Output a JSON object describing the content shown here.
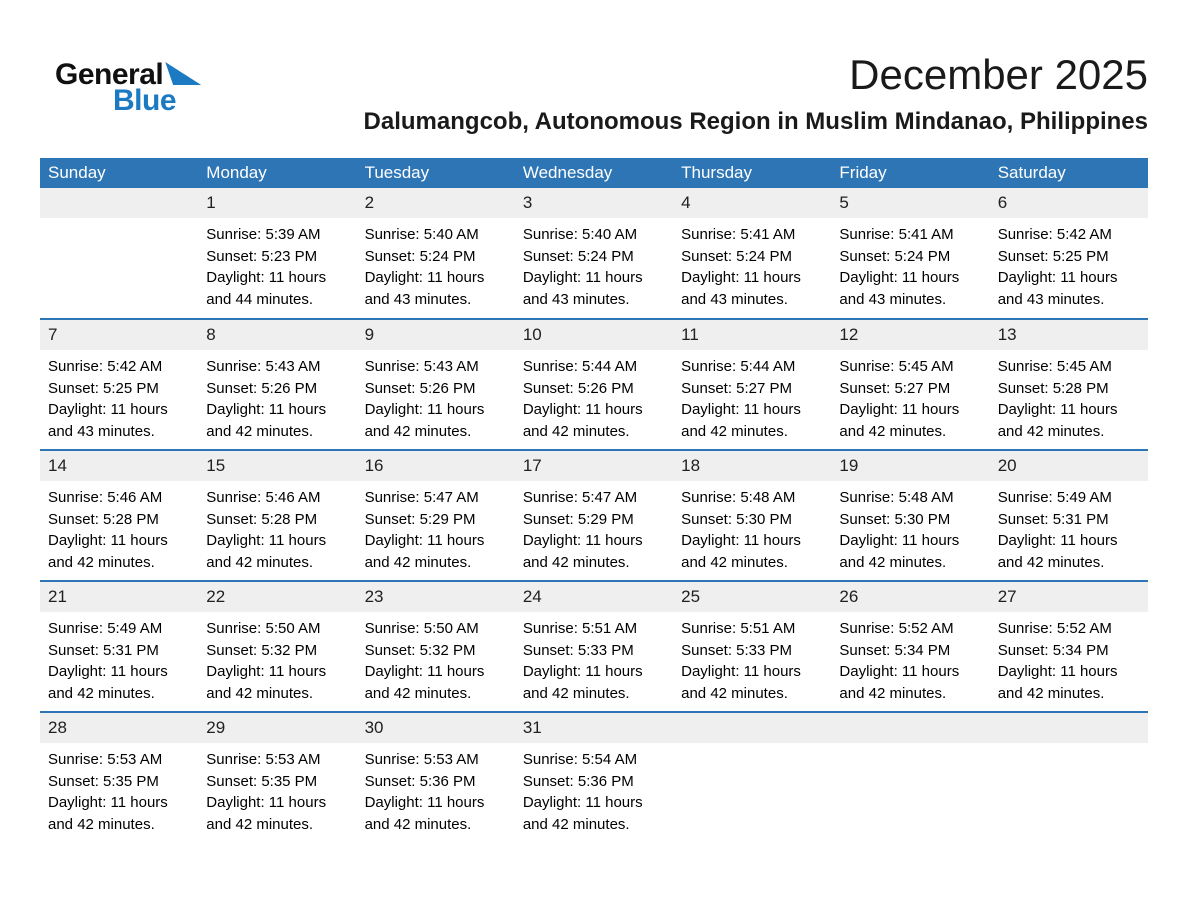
{
  "logo": {
    "part1": "General",
    "part2": "Blue"
  },
  "header": {
    "title": "December 2025",
    "subtitle": "Dalumangcob, Autonomous Region in Muslim Mindanao, Philippines"
  },
  "colors": {
    "header_bg": "#2e75b6",
    "week_border": "#2e75b6",
    "day_strip_bg": "#efefef",
    "logo_blue": "#1b7ac2"
  },
  "calendar": {
    "weekdays": [
      "Sunday",
      "Monday",
      "Tuesday",
      "Wednesday",
      "Thursday",
      "Friday",
      "Saturday"
    ],
    "weeks": [
      [
        null,
        {
          "day": "1",
          "sunrise": "Sunrise: 5:39 AM",
          "sunset": "Sunset: 5:23 PM",
          "daylight": [
            "Daylight: 11 hours",
            "and 44 minutes."
          ]
        },
        {
          "day": "2",
          "sunrise": "Sunrise: 5:40 AM",
          "sunset": "Sunset: 5:24 PM",
          "daylight": [
            "Daylight: 11 hours",
            "and 43 minutes."
          ]
        },
        {
          "day": "3",
          "sunrise": "Sunrise: 5:40 AM",
          "sunset": "Sunset: 5:24 PM",
          "daylight": [
            "Daylight: 11 hours",
            "and 43 minutes."
          ]
        },
        {
          "day": "4",
          "sunrise": "Sunrise: 5:41 AM",
          "sunset": "Sunset: 5:24 PM",
          "daylight": [
            "Daylight: 11 hours",
            "and 43 minutes."
          ]
        },
        {
          "day": "5",
          "sunrise": "Sunrise: 5:41 AM",
          "sunset": "Sunset: 5:24 PM",
          "daylight": [
            "Daylight: 11 hours",
            "and 43 minutes."
          ]
        },
        {
          "day": "6",
          "sunrise": "Sunrise: 5:42 AM",
          "sunset": "Sunset: 5:25 PM",
          "daylight": [
            "Daylight: 11 hours",
            "and 43 minutes."
          ]
        }
      ],
      [
        {
          "day": "7",
          "sunrise": "Sunrise: 5:42 AM",
          "sunset": "Sunset: 5:25 PM",
          "daylight": [
            "Daylight: 11 hours",
            "and 43 minutes."
          ]
        },
        {
          "day": "8",
          "sunrise": "Sunrise: 5:43 AM",
          "sunset": "Sunset: 5:26 PM",
          "daylight": [
            "Daylight: 11 hours",
            "and 42 minutes."
          ]
        },
        {
          "day": "9",
          "sunrise": "Sunrise: 5:43 AM",
          "sunset": "Sunset: 5:26 PM",
          "daylight": [
            "Daylight: 11 hours",
            "and 42 minutes."
          ]
        },
        {
          "day": "10",
          "sunrise": "Sunrise: 5:44 AM",
          "sunset": "Sunset: 5:26 PM",
          "daylight": [
            "Daylight: 11 hours",
            "and 42 minutes."
          ]
        },
        {
          "day": "11",
          "sunrise": "Sunrise: 5:44 AM",
          "sunset": "Sunset: 5:27 PM",
          "daylight": [
            "Daylight: 11 hours",
            "and 42 minutes."
          ]
        },
        {
          "day": "12",
          "sunrise": "Sunrise: 5:45 AM",
          "sunset": "Sunset: 5:27 PM",
          "daylight": [
            "Daylight: 11 hours",
            "and 42 minutes."
          ]
        },
        {
          "day": "13",
          "sunrise": "Sunrise: 5:45 AM",
          "sunset": "Sunset: 5:28 PM",
          "daylight": [
            "Daylight: 11 hours",
            "and 42 minutes."
          ]
        }
      ],
      [
        {
          "day": "14",
          "sunrise": "Sunrise: 5:46 AM",
          "sunset": "Sunset: 5:28 PM",
          "daylight": [
            "Daylight: 11 hours",
            "and 42 minutes."
          ]
        },
        {
          "day": "15",
          "sunrise": "Sunrise: 5:46 AM",
          "sunset": "Sunset: 5:28 PM",
          "daylight": [
            "Daylight: 11 hours",
            "and 42 minutes."
          ]
        },
        {
          "day": "16",
          "sunrise": "Sunrise: 5:47 AM",
          "sunset": "Sunset: 5:29 PM",
          "daylight": [
            "Daylight: 11 hours",
            "and 42 minutes."
          ]
        },
        {
          "day": "17",
          "sunrise": "Sunrise: 5:47 AM",
          "sunset": "Sunset: 5:29 PM",
          "daylight": [
            "Daylight: 11 hours",
            "and 42 minutes."
          ]
        },
        {
          "day": "18",
          "sunrise": "Sunrise: 5:48 AM",
          "sunset": "Sunset: 5:30 PM",
          "daylight": [
            "Daylight: 11 hours",
            "and 42 minutes."
          ]
        },
        {
          "day": "19",
          "sunrise": "Sunrise: 5:48 AM",
          "sunset": "Sunset: 5:30 PM",
          "daylight": [
            "Daylight: 11 hours",
            "and 42 minutes."
          ]
        },
        {
          "day": "20",
          "sunrise": "Sunrise: 5:49 AM",
          "sunset": "Sunset: 5:31 PM",
          "daylight": [
            "Daylight: 11 hours",
            "and 42 minutes."
          ]
        }
      ],
      [
        {
          "day": "21",
          "sunrise": "Sunrise: 5:49 AM",
          "sunset": "Sunset: 5:31 PM",
          "daylight": [
            "Daylight: 11 hours",
            "and 42 minutes."
          ]
        },
        {
          "day": "22",
          "sunrise": "Sunrise: 5:50 AM",
          "sunset": "Sunset: 5:32 PM",
          "daylight": [
            "Daylight: 11 hours",
            "and 42 minutes."
          ]
        },
        {
          "day": "23",
          "sunrise": "Sunrise: 5:50 AM",
          "sunset": "Sunset: 5:32 PM",
          "daylight": [
            "Daylight: 11 hours",
            "and 42 minutes."
          ]
        },
        {
          "day": "24",
          "sunrise": "Sunrise: 5:51 AM",
          "sunset": "Sunset: 5:33 PM",
          "daylight": [
            "Daylight: 11 hours",
            "and 42 minutes."
          ]
        },
        {
          "day": "25",
          "sunrise": "Sunrise: 5:51 AM",
          "sunset": "Sunset: 5:33 PM",
          "daylight": [
            "Daylight: 11 hours",
            "and 42 minutes."
          ]
        },
        {
          "day": "26",
          "sunrise": "Sunrise: 5:52 AM",
          "sunset": "Sunset: 5:34 PM",
          "daylight": [
            "Daylight: 11 hours",
            "and 42 minutes."
          ]
        },
        {
          "day": "27",
          "sunrise": "Sunrise: 5:52 AM",
          "sunset": "Sunset: 5:34 PM",
          "daylight": [
            "Daylight: 11 hours",
            "and 42 minutes."
          ]
        }
      ],
      [
        {
          "day": "28",
          "sunrise": "Sunrise: 5:53 AM",
          "sunset": "Sunset: 5:35 PM",
          "daylight": [
            "Daylight: 11 hours",
            "and 42 minutes."
          ]
        },
        {
          "day": "29",
          "sunrise": "Sunrise: 5:53 AM",
          "sunset": "Sunset: 5:35 PM",
          "daylight": [
            "Daylight: 11 hours",
            "and 42 minutes."
          ]
        },
        {
          "day": "30",
          "sunrise": "Sunrise: 5:53 AM",
          "sunset": "Sunset: 5:36 PM",
          "daylight": [
            "Daylight: 11 hours",
            "and 42 minutes."
          ]
        },
        {
          "day": "31",
          "sunrise": "Sunrise: 5:54 AM",
          "sunset": "Sunset: 5:36 PM",
          "daylight": [
            "Daylight: 11 hours",
            "and 42 minutes."
          ]
        },
        null,
        null,
        null
      ]
    ]
  }
}
